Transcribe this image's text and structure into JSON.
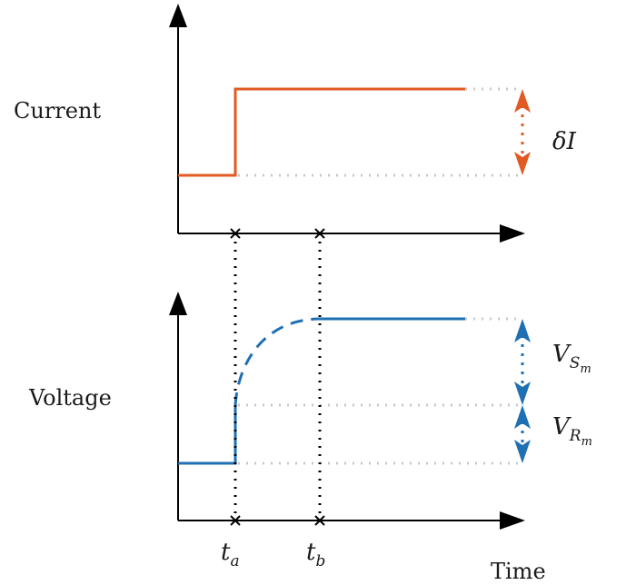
{
  "labels": {
    "current": "Current",
    "voltage": "Voltage",
    "time": "Time",
    "t_a_base": "t",
    "t_a_sub": "a",
    "t_b_base": "t",
    "t_b_sub": "b",
    "delta_i_symbol": "δ",
    "delta_i_var": "I",
    "v_s_base": "V",
    "v_s_sub": "S",
    "v_s_subsub": "m",
    "v_r_base": "V",
    "v_r_sub": "R",
    "v_r_subsub": "m"
  },
  "colors": {
    "current": "#e05a22",
    "voltage": "#1f6fb3",
    "axis": "#000000",
    "guide": "#c8c8c8",
    "marker": "#000000"
  }
}
